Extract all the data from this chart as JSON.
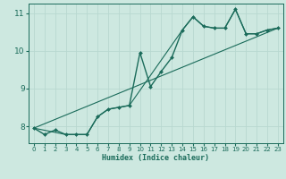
{
  "xlabel": "Humidex (Indice chaleur)",
  "background_color": "#cde8e0",
  "grid_color": "#b8d8d0",
  "line_color": "#1a6b5a",
  "xlim": [
    -0.5,
    23.5
  ],
  "ylim": [
    7.55,
    11.25
  ],
  "yticks": [
    8,
    9,
    10,
    11
  ],
  "xticks": [
    0,
    1,
    2,
    3,
    4,
    5,
    6,
    7,
    8,
    9,
    10,
    11,
    12,
    13,
    14,
    15,
    16,
    17,
    18,
    19,
    20,
    21,
    22,
    23
  ],
  "series": [
    {
      "x": [
        0,
        1,
        2,
        3,
        4,
        5,
        6,
        7,
        8,
        9,
        10,
        11,
        12,
        13,
        14,
        15,
        16,
        17,
        18,
        19,
        20,
        21,
        22,
        23
      ],
      "y": [
        7.95,
        7.78,
        7.9,
        7.78,
        7.78,
        7.78,
        8.25,
        8.45,
        8.5,
        8.55,
        9.95,
        9.05,
        9.45,
        9.82,
        10.55,
        10.9,
        10.65,
        10.6,
        10.6,
        11.1,
        10.45,
        10.45,
        10.55,
        10.6
      ],
      "marker": "D",
      "markersize": 2.0,
      "linewidth": 1.0
    },
    {
      "x": [
        0,
        3,
        5,
        6,
        7,
        8,
        9,
        14,
        15,
        16,
        17,
        18,
        19,
        20,
        21,
        22,
        23
      ],
      "y": [
        7.95,
        7.78,
        7.78,
        8.25,
        8.45,
        8.5,
        8.55,
        10.55,
        10.9,
        10.65,
        10.6,
        10.6,
        11.1,
        10.45,
        10.45,
        10.55,
        10.6
      ],
      "marker": null,
      "markersize": 0,
      "linewidth": 0.8
    },
    {
      "x": [
        0,
        23
      ],
      "y": [
        7.95,
        10.6
      ],
      "marker": null,
      "markersize": 0,
      "linewidth": 0.8
    }
  ]
}
